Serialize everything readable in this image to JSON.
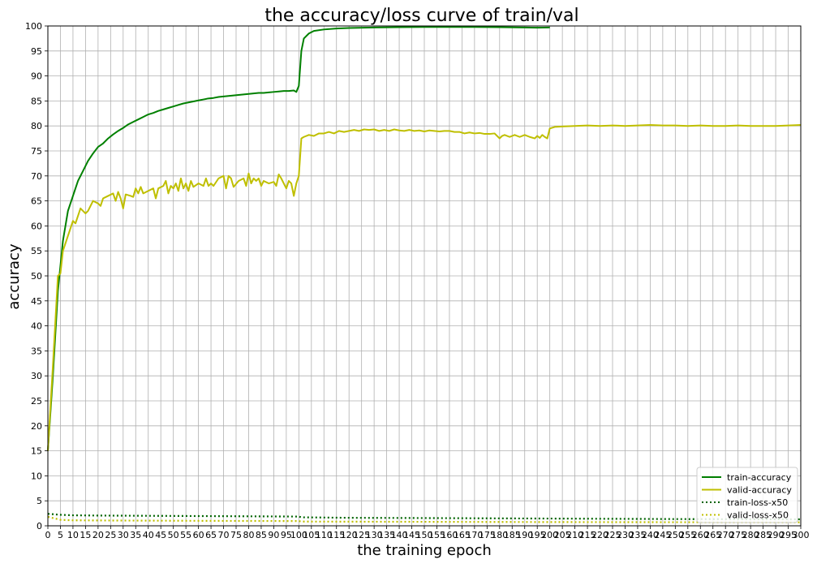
{
  "chart_data": {
    "type": "line",
    "title": "the accuracy/loss curve of train/val",
    "xlabel": "the training epoch",
    "ylabel": "accuracy",
    "xlim": [
      0,
      300
    ],
    "ylim": [
      0,
      100
    ],
    "xticks": [
      0,
      5,
      10,
      15,
      20,
      25,
      30,
      35,
      40,
      45,
      50,
      55,
      60,
      65,
      70,
      75,
      80,
      85,
      90,
      95,
      100,
      105,
      110,
      115,
      120,
      125,
      130,
      135,
      140,
      145,
      150,
      155,
      160,
      165,
      170,
      175,
      180,
      185,
      190,
      195,
      200,
      205,
      210,
      215,
      220,
      225,
      230,
      235,
      240,
      245,
      250,
      255,
      260,
      265,
      270,
      275,
      280,
      285,
      290,
      295,
      300
    ],
    "yticks": [
      0,
      5,
      10,
      15,
      20,
      25,
      30,
      35,
      40,
      45,
      50,
      55,
      60,
      65,
      70,
      75,
      80,
      85,
      90,
      95,
      100
    ],
    "grid": true,
    "legend_position": "bottom-right",
    "series": [
      {
        "name": "train-accuracy",
        "color": "#008000",
        "style": "solid",
        "points": [
          [
            0,
            15
          ],
          [
            2,
            30
          ],
          [
            4,
            47
          ],
          [
            6,
            57
          ],
          [
            8,
            63
          ],
          [
            10,
            66
          ],
          [
            12,
            69
          ],
          [
            14,
            71
          ],
          [
            16,
            73
          ],
          [
            18,
            74.5
          ],
          [
            20,
            75.8
          ],
          [
            22,
            76.5
          ],
          [
            24,
            77.5
          ],
          [
            26,
            78.3
          ],
          [
            28,
            79
          ],
          [
            30,
            79.6
          ],
          [
            32,
            80.3
          ],
          [
            34,
            80.8
          ],
          [
            36,
            81.3
          ],
          [
            38,
            81.8
          ],
          [
            40,
            82.3
          ],
          [
            42,
            82.6
          ],
          [
            44,
            83
          ],
          [
            46,
            83.3
          ],
          [
            48,
            83.6
          ],
          [
            50,
            83.9
          ],
          [
            52,
            84.2
          ],
          [
            54,
            84.5
          ],
          [
            56,
            84.7
          ],
          [
            58,
            84.9
          ],
          [
            60,
            85.1
          ],
          [
            62,
            85.3
          ],
          [
            64,
            85.5
          ],
          [
            66,
            85.6
          ],
          [
            68,
            85.8
          ],
          [
            70,
            85.9
          ],
          [
            72,
            86
          ],
          [
            74,
            86.1
          ],
          [
            76,
            86.2
          ],
          [
            78,
            86.3
          ],
          [
            80,
            86.4
          ],
          [
            82,
            86.5
          ],
          [
            84,
            86.6
          ],
          [
            86,
            86.6
          ],
          [
            88,
            86.7
          ],
          [
            90,
            86.8
          ],
          [
            92,
            86.9
          ],
          [
            94,
            87
          ],
          [
            96,
            87
          ],
          [
            98,
            87.1
          ],
          [
            99,
            86.8
          ],
          [
            100,
            88
          ],
          [
            101,
            95
          ],
          [
            102,
            97.5
          ],
          [
            104,
            98.5
          ],
          [
            106,
            99
          ],
          [
            110,
            99.3
          ],
          [
            115,
            99.5
          ],
          [
            120,
            99.6
          ],
          [
            130,
            99.7
          ],
          [
            140,
            99.75
          ],
          [
            150,
            99.8
          ],
          [
            160,
            99.8
          ],
          [
            170,
            99.8
          ],
          [
            180,
            99.75
          ],
          [
            190,
            99.7
          ],
          [
            195,
            99.65
          ],
          [
            200,
            99.7
          ]
        ]
      },
      {
        "name": "valid-accuracy",
        "color": "#bfbf00",
        "style": "solid",
        "points": [
          [
            0,
            15
          ],
          [
            2,
            32
          ],
          [
            4,
            50
          ],
          [
            5,
            50.5
          ],
          [
            6,
            55
          ],
          [
            8,
            58
          ],
          [
            10,
            61
          ],
          [
            11,
            60.5
          ],
          [
            13,
            63.5
          ],
          [
            14,
            63
          ],
          [
            15,
            62.5
          ],
          [
            16,
            63
          ],
          [
            18,
            65
          ],
          [
            20,
            64.5
          ],
          [
            21,
            64
          ],
          [
            22,
            65.5
          ],
          [
            24,
            66
          ],
          [
            26,
            66.5
          ],
          [
            27,
            65
          ],
          [
            28,
            66.8
          ],
          [
            29,
            65.5
          ],
          [
            30,
            63.5
          ],
          [
            31,
            66.3
          ],
          [
            33,
            66
          ],
          [
            34,
            65.8
          ],
          [
            35,
            67.5
          ],
          [
            36,
            66.5
          ],
          [
            37,
            67.8
          ],
          [
            38,
            66.5
          ],
          [
            40,
            67
          ],
          [
            42,
            67.5
          ],
          [
            43,
            65.5
          ],
          [
            44,
            67.5
          ],
          [
            46,
            68
          ],
          [
            47,
            69
          ],
          [
            48,
            66.5
          ],
          [
            49,
            68
          ],
          [
            50,
            67.5
          ],
          [
            51,
            68.5
          ],
          [
            52,
            67
          ],
          [
            53,
            69.5
          ],
          [
            54,
            67.5
          ],
          [
            55,
            68.5
          ],
          [
            56,
            67
          ],
          [
            57,
            69
          ],
          [
            58,
            67.8
          ],
          [
            60,
            68.5
          ],
          [
            62,
            68
          ],
          [
            63,
            69.5
          ],
          [
            64,
            68
          ],
          [
            65,
            68.5
          ],
          [
            66,
            68
          ],
          [
            68,
            69.5
          ],
          [
            70,
            70
          ],
          [
            71,
            67.5
          ],
          [
            72,
            70
          ],
          [
            73,
            69.5
          ],
          [
            74,
            67.8
          ],
          [
            76,
            69
          ],
          [
            78,
            69.5
          ],
          [
            79,
            68
          ],
          [
            80,
            70.5
          ],
          [
            81,
            68.5
          ],
          [
            82,
            69.5
          ],
          [
            83,
            69
          ],
          [
            84,
            69.5
          ],
          [
            85,
            68
          ],
          [
            86,
            69
          ],
          [
            88,
            68.5
          ],
          [
            90,
            68.8
          ],
          [
            91,
            68
          ],
          [
            92,
            70.3
          ],
          [
            93,
            69.5
          ],
          [
            94,
            68.5
          ],
          [
            95,
            67.5
          ],
          [
            96,
            69
          ],
          [
            97,
            68.5
          ],
          [
            98,
            66
          ],
          [
            99,
            68.5
          ],
          [
            100,
            70
          ],
          [
            101,
            77.5
          ],
          [
            102,
            77.8
          ],
          [
            104,
            78.2
          ],
          [
            106,
            78
          ],
          [
            108,
            78.5
          ],
          [
            110,
            78.5
          ],
          [
            112,
            78.8
          ],
          [
            114,
            78.5
          ],
          [
            116,
            79
          ],
          [
            118,
            78.8
          ],
          [
            120,
            79
          ],
          [
            122,
            79.2
          ],
          [
            124,
            79
          ],
          [
            126,
            79.3
          ],
          [
            128,
            79.2
          ],
          [
            130,
            79.3
          ],
          [
            132,
            79
          ],
          [
            134,
            79.2
          ],
          [
            136,
            79
          ],
          [
            138,
            79.3
          ],
          [
            140,
            79.1
          ],
          [
            142,
            79
          ],
          [
            144,
            79.2
          ],
          [
            146,
            79
          ],
          [
            148,
            79.1
          ],
          [
            150,
            78.9
          ],
          [
            152,
            79.1
          ],
          [
            154,
            79
          ],
          [
            156,
            78.9
          ],
          [
            158,
            79
          ],
          [
            160,
            79
          ],
          [
            162,
            78.8
          ],
          [
            164,
            78.8
          ],
          [
            166,
            78.5
          ],
          [
            168,
            78.7
          ],
          [
            170,
            78.5
          ],
          [
            172,
            78.6
          ],
          [
            174,
            78.4
          ],
          [
            176,
            78.4
          ],
          [
            178,
            78.5
          ],
          [
            180,
            77.5
          ],
          [
            181,
            78
          ],
          [
            182,
            78.2
          ],
          [
            184,
            77.8
          ],
          [
            186,
            78.2
          ],
          [
            188,
            77.8
          ],
          [
            190,
            78.2
          ],
          [
            192,
            77.8
          ],
          [
            194,
            77.5
          ],
          [
            195,
            78
          ],
          [
            196,
            77.6
          ],
          [
            197,
            78.2
          ],
          [
            198,
            77.8
          ],
          [
            199,
            77.5
          ],
          [
            200,
            79.5
          ],
          [
            202,
            79.8
          ],
          [
            205,
            79.9
          ],
          [
            210,
            80
          ],
          [
            215,
            80.1
          ],
          [
            220,
            80
          ],
          [
            225,
            80.1
          ],
          [
            230,
            80
          ],
          [
            235,
            80.1
          ],
          [
            240,
            80.2
          ],
          [
            245,
            80.1
          ],
          [
            250,
            80.1
          ],
          [
            255,
            80
          ],
          [
            260,
            80.1
          ],
          [
            265,
            80
          ],
          [
            270,
            80
          ],
          [
            275,
            80.1
          ],
          [
            280,
            80
          ],
          [
            285,
            80
          ],
          [
            290,
            80
          ],
          [
            295,
            80.1
          ],
          [
            300,
            80.2
          ]
        ]
      },
      {
        "name": "train-loss-x50",
        "color": "#006400",
        "style": "dotted",
        "points": [
          [
            0,
            2.4
          ],
          [
            5,
            2.2
          ],
          [
            10,
            2.1
          ],
          [
            20,
            2.05
          ],
          [
            40,
            2
          ],
          [
            60,
            1.95
          ],
          [
            80,
            1.9
          ],
          [
            100,
            1.85
          ],
          [
            101,
            1.7
          ],
          [
            120,
            1.6
          ],
          [
            150,
            1.55
          ],
          [
            200,
            1.45
          ],
          [
            250,
            1.35
          ],
          [
            300,
            1.3
          ]
        ]
      },
      {
        "name": "valid-loss-x50",
        "color": "#bfbf00",
        "style": "dotted",
        "points": [
          [
            0,
            1.8
          ],
          [
            5,
            1.2
          ],
          [
            10,
            1.1
          ],
          [
            30,
            1.05
          ],
          [
            60,
            1
          ],
          [
            100,
            0.95
          ],
          [
            101,
            0.85
          ],
          [
            150,
            0.8
          ],
          [
            200,
            0.75
          ],
          [
            250,
            0.72
          ],
          [
            300,
            0.7
          ]
        ]
      }
    ]
  }
}
